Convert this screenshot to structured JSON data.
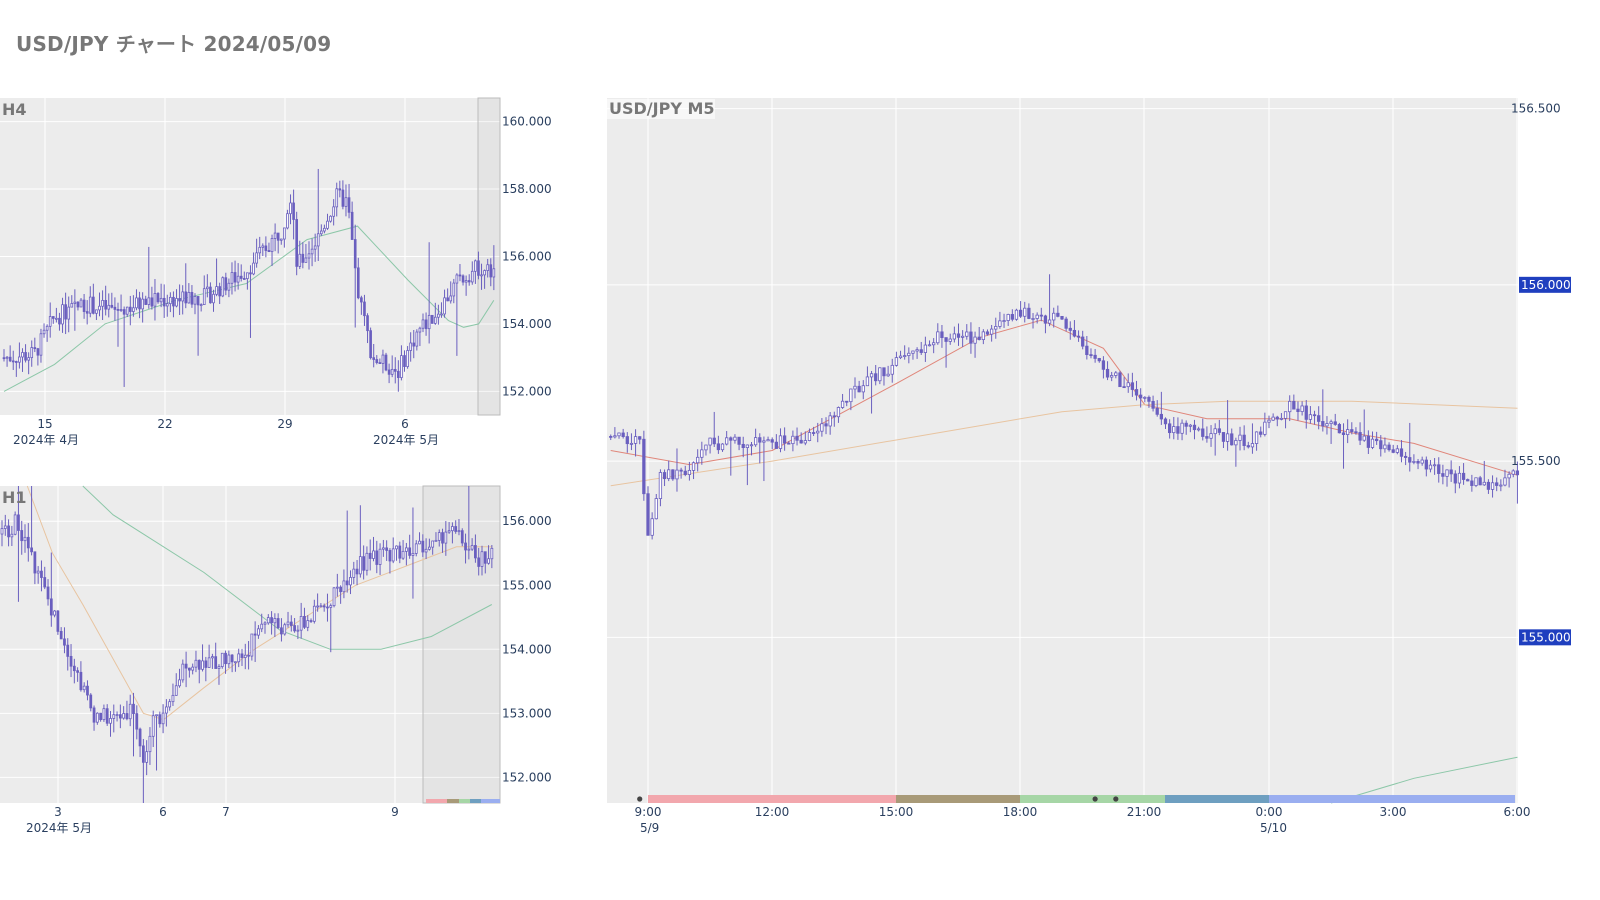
{
  "title": "USD/JPY チャート 2024/05/09",
  "colors": {
    "candle": "#6a5fbf",
    "plot_bg": "#ececec",
    "grid": "#ffffff",
    "badge": "#1f3fbf",
    "ma_fast": "#e0867a",
    "ma_mid": "#e8c4a0",
    "ma_slow": "#8cc7a8",
    "session": [
      "#f2a7ad",
      "#a89a78",
      "#a6d6a6",
      "#6e9fc0",
      "#9aaef0"
    ]
  },
  "chart_data": [
    {
      "type": "candlestick",
      "title": "H4",
      "ylim": [
        151.3,
        160.7
      ],
      "yticks": [
        "160.000",
        "158.000",
        "156.000",
        "154.000",
        "152.000"
      ],
      "ytick_values": [
        160,
        158,
        156,
        154,
        152
      ],
      "xtick_labels": [
        "15",
        "22",
        "29",
        "6"
      ],
      "xtick_sublabels": [
        "2024年 4月",
        "",
        "",
        "2024年 5月"
      ],
      "close_path": [
        [
          0,
          153.0
        ],
        [
          6,
          153.1
        ],
        [
          10,
          154.2
        ],
        [
          16,
          154.6
        ],
        [
          22,
          154.4
        ],
        [
          30,
          154.7
        ],
        [
          40,
          154.8
        ],
        [
          48,
          155.6
        ],
        [
          55,
          156.8
        ],
        [
          57,
          158.0
        ],
        [
          58,
          155.7
        ],
        [
          62,
          156.5
        ],
        [
          66,
          157.8
        ],
        [
          68,
          157.6
        ],
        [
          70,
          155.0
        ],
        [
          73,
          153.0
        ],
        [
          78,
          152.6
        ],
        [
          82,
          153.8
        ],
        [
          86,
          154.4
        ],
        [
          90,
          155.3
        ],
        [
          94,
          155.7
        ],
        [
          97,
          155.5
        ]
      ],
      "ma": [
        [
          0,
          152.0
        ],
        [
          10,
          152.8
        ],
        [
          20,
          154.0
        ],
        [
          34,
          154.7
        ],
        [
          48,
          155.2
        ],
        [
          60,
          156.5
        ],
        [
          70,
          156.9
        ],
        [
          80,
          155.3
        ],
        [
          88,
          154.1
        ],
        [
          91,
          153.9
        ],
        [
          94,
          154.0
        ],
        [
          97,
          154.7
        ]
      ]
    },
    {
      "type": "candlestick",
      "title": "H1",
      "ylim": [
        151.6,
        156.55
      ],
      "yticks": [
        "156.000",
        "155.000",
        "154.000",
        "153.000",
        "152.000"
      ],
      "ytick_values": [
        156,
        155,
        154,
        153,
        152
      ],
      "xtick_labels": [
        "3",
        "6",
        "7",
        "9"
      ],
      "xtick_sublabels": [
        "2024年 5月",
        "",
        "",
        ""
      ],
      "close_path": [
        [
          0,
          155.8
        ],
        [
          3,
          156.0
        ],
        [
          8,
          155.0
        ],
        [
          14,
          153.8
        ],
        [
          18,
          153.0
        ],
        [
          22,
          152.9
        ],
        [
          26,
          153.1
        ],
        [
          28,
          152.2
        ],
        [
          30,
          152.9
        ],
        [
          33,
          153.0
        ],
        [
          36,
          153.8
        ],
        [
          42,
          153.8
        ],
        [
          48,
          153.9
        ],
        [
          52,
          154.5
        ],
        [
          56,
          154.3
        ],
        [
          60,
          154.4
        ],
        [
          65,
          154.8
        ],
        [
          70,
          155.3
        ],
        [
          76,
          155.5
        ],
        [
          82,
          155.6
        ],
        [
          86,
          155.6
        ],
        [
          88,
          155.9
        ],
        [
          91,
          155.7
        ],
        [
          94,
          155.4
        ],
        [
          97,
          155.5
        ]
      ],
      "ma": [
        [
          5,
          156.6
        ],
        [
          10,
          155.5
        ],
        [
          16,
          154.7
        ],
        [
          28,
          153.0
        ],
        [
          32,
          152.9
        ],
        [
          40,
          153.4
        ],
        [
          50,
          154.0
        ],
        [
          60,
          154.5
        ],
        [
          70,
          155.0
        ],
        [
          80,
          155.3
        ],
        [
          90,
          155.6
        ],
        [
          97,
          155.6
        ]
      ],
      "ma2": [
        [
          16,
          156.6
        ],
        [
          22,
          156.1
        ],
        [
          40,
          155.2
        ],
        [
          55,
          154.3
        ],
        [
          65,
          154.0
        ],
        [
          75,
          154.0
        ],
        [
          85,
          154.2
        ],
        [
          97,
          154.7
        ]
      ]
    },
    {
      "type": "candlestick",
      "title": "USD/JPY M5",
      "ylim": [
        154.53,
        156.53
      ],
      "yticks": [
        "156.500",
        "155.500"
      ],
      "ytick_values": [
        156.5,
        155.5
      ],
      "badges": [
        "156.000",
        "155.000"
      ],
      "badge_values": [
        156.0,
        155.0
      ],
      "xtick_labels": [
        "9:00",
        "12:00",
        "15:00",
        "18:00",
        "21:00",
        "0:00",
        "3:00",
        "6:00"
      ],
      "xtick_sublabels": [
        "5/9",
        "",
        "",
        "",
        "",
        "5/10",
        "",
        ""
      ],
      "close_path": [
        [
          -0.9,
          155.57
        ],
        [
          -0.2,
          155.55
        ],
        [
          0,
          155.3
        ],
        [
          0.3,
          155.45
        ],
        [
          1.0,
          155.48
        ],
        [
          1.5,
          155.55
        ],
        [
          2,
          155.55
        ],
        [
          3,
          155.55
        ],
        [
          4,
          155.57
        ],
        [
          5,
          155.7
        ],
        [
          6,
          155.78
        ],
        [
          7.0,
          155.85
        ],
        [
          8.0,
          155.85
        ],
        [
          9.0,
          155.92
        ],
        [
          10.0,
          155.9
        ],
        [
          11,
          155.76
        ],
        [
          12.0,
          155.67
        ],
        [
          12.5,
          155.6
        ],
        [
          13.5,
          155.58
        ],
        [
          14.5,
          155.55
        ],
        [
          15.5,
          155.66
        ],
        [
          16,
          155.63
        ],
        [
          17.5,
          155.55
        ],
        [
          18.5,
          155.5
        ],
        [
          19.5,
          155.45
        ],
        [
          20.5,
          155.43
        ],
        [
          21,
          155.47
        ]
      ],
      "ma": [
        [
          -0.9,
          155.53
        ],
        [
          1,
          155.49
        ],
        [
          3,
          155.53
        ],
        [
          6,
          155.72
        ],
        [
          8,
          155.85
        ],
        [
          9.5,
          155.9
        ],
        [
          11,
          155.82
        ],
        [
          12.0,
          155.66
        ],
        [
          13.5,
          155.62
        ],
        [
          15.5,
          155.62
        ],
        [
          17,
          155.58
        ],
        [
          18.5,
          155.55
        ],
        [
          21,
          155.46
        ]
      ],
      "ma2": [
        [
          -0.9,
          155.43
        ],
        [
          3,
          155.5
        ],
        [
          7,
          155.58
        ],
        [
          10,
          155.64
        ],
        [
          12,
          155.66
        ],
        [
          14,
          155.67
        ],
        [
          17,
          155.67
        ],
        [
          21,
          155.65
        ]
      ],
      "ma3": [
        [
          16.5,
          154.53
        ],
        [
          18.5,
          154.6
        ],
        [
          21,
          154.66
        ]
      ],
      "session_dots": [
        -0.2,
        10.8,
        11.3
      ]
    }
  ]
}
